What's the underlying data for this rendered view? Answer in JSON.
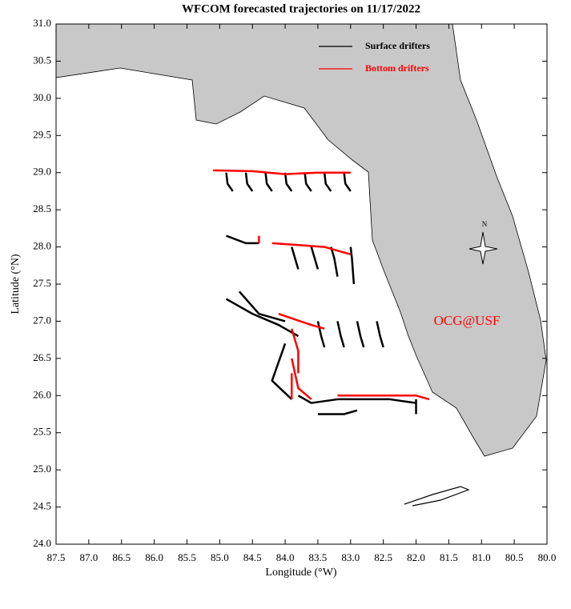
{
  "chart_data": {
    "type": "map",
    "title": "WFCOM forecasted trajectories on 11/17/2022",
    "x_label": "Longitude (°W)",
    "y_label": "Latitude (°N)",
    "annotations": [
      "OCG@USF",
      "N"
    ],
    "legend": "upper right",
    "xlim": [
      87.5,
      80.0
    ],
    "ylim": [
      24.0,
      31.0
    ],
    "xticks": [
      87.5,
      {
        "value": 87,
        "label": "87.0"
      },
      86.5,
      {
        "value": 86,
        "label": "86.0"
      },
      85.5,
      {
        "value": 85,
        "label": "85.0"
      },
      84.5,
      {
        "value": 84,
        "label": "84.0"
      },
      83.5,
      {
        "value": 83,
        "label": "83.0"
      },
      82.5,
      {
        "value": 82,
        "label": "82.0"
      },
      81.5,
      {
        "value": 81,
        "label": "81.0"
      },
      80.5,
      {
        "value": 80,
        "label": "80.0"
      }
    ],
    "yticks": [
      {
        "value": 24,
        "label": "24.0"
      },
      24.5,
      {
        "value": 25,
        "label": "25.0"
      },
      25.5,
      {
        "value": 26,
        "label": "26.0"
      },
      26.5,
      {
        "value": 27,
        "label": "27.0"
      },
      27.5,
      {
        "value": 28,
        "label": "28.0"
      },
      28.5,
      {
        "value": 29,
        "label": "29.0"
      },
      29.5,
      {
        "value": 30,
        "label": "30.0"
      },
      30.5,
      {
        "value": 31,
        "label": "31.0"
      }
    ],
    "series": [
      {
        "name": "Surface drifters",
        "color": "#000000",
        "tracks": [
          {
            "x": [
              84.9,
              84.88,
              84.8
            ],
            "y": [
              29.0,
              28.85,
              28.75
            ]
          },
          {
            "x": [
              84.6,
              84.58,
              84.5
            ],
            "y": [
              29.0,
              28.85,
              28.75
            ]
          },
          {
            "x": [
              84.3,
              84.28,
              84.2
            ],
            "y": [
              29.0,
              28.85,
              28.75
            ]
          },
          {
            "x": [
              84.0,
              83.98,
              83.9
            ],
            "y": [
              29.0,
              28.85,
              28.75
            ]
          },
          {
            "x": [
              83.7,
              83.68,
              83.6
            ],
            "y": [
              29.0,
              28.85,
              28.75
            ]
          },
          {
            "x": [
              83.4,
              83.38,
              83.3
            ],
            "y": [
              29.0,
              28.85,
              28.75
            ]
          },
          {
            "x": [
              83.1,
              83.08,
              83.0
            ],
            "y": [
              29.0,
              28.85,
              28.75
            ]
          },
          {
            "x": [
              84.9,
              84.6,
              84.4
            ],
            "y": [
              28.15,
              28.05,
              28.05
            ]
          },
          {
            "x": [
              83.9,
              83.85,
              83.8
            ],
            "y": [
              28.0,
              27.85,
              27.7
            ]
          },
          {
            "x": [
              83.6,
              83.55,
              83.5
            ],
            "y": [
              28.0,
              27.85,
              27.7
            ]
          },
          {
            "x": [
              83.3,
              83.25,
              83.2
            ],
            "y": [
              28.0,
              27.85,
              27.6
            ]
          },
          {
            "x": [
              83.0,
              82.98,
              82.95
            ],
            "y": [
              28.0,
              27.85,
              27.5
            ]
          },
          {
            "x": [
              84.9,
              84.5,
              84.1,
              83.8
            ],
            "y": [
              27.3,
              27.1,
              26.95,
              26.8
            ]
          },
          {
            "x": [
              84.7,
              84.4,
              84.0
            ],
            "y": [
              27.4,
              27.1,
              27.0
            ]
          },
          {
            "x": [
              83.5,
              83.45,
              83.4
            ],
            "y": [
              27.0,
              26.8,
              26.65
            ]
          },
          {
            "x": [
              83.2,
              83.15,
              83.1
            ],
            "y": [
              27.0,
              26.8,
              26.65
            ]
          },
          {
            "x": [
              82.9,
              82.85,
              82.8
            ],
            "y": [
              27.0,
              26.8,
              26.65
            ]
          },
          {
            "x": [
              82.6,
              82.55,
              82.5
            ],
            "y": [
              27.0,
              26.8,
              26.65
            ]
          },
          {
            "x": [
              83.8,
              83.6,
              83.2,
              82.8,
              82.4,
              82.0
            ],
            "y": [
              26.0,
              25.9,
              25.95,
              25.95,
              25.95,
              25.9
            ]
          },
          {
            "x": [
              83.5,
              83.1,
              82.9
            ],
            "y": [
              25.75,
              25.75,
              25.8
            ]
          },
          {
            "x": [
              82.0,
              82.0
            ],
            "y": [
              25.95,
              25.75
            ]
          },
          {
            "x": [
              84.0,
              84.2,
              83.9
            ],
            "y": [
              26.7,
              26.2,
              25.95
            ]
          }
        ]
      },
      {
        "name": "Bottom drifters",
        "color": "#ff0000",
        "tracks": [
          {
            "x": [
              85.1,
              84.5,
              84.0,
              83.5,
              83.0
            ],
            "y": [
              29.03,
              29.02,
              28.98,
              29.0,
              29.0
            ]
          },
          {
            "x": [
              84.4,
              84.4
            ],
            "y": [
              28.15,
              28.05
            ]
          },
          {
            "x": [
              84.2,
              83.4,
              83.0
            ],
            "y": [
              28.05,
              28.0,
              27.9
            ]
          },
          {
            "x": [
              84.1,
              83.6,
              83.4
            ],
            "y": [
              27.1,
              26.95,
              26.9
            ]
          },
          {
            "x": [
              83.9,
              83.8,
              83.8
            ],
            "y": [
              26.9,
              26.6,
              26.3
            ]
          },
          {
            "x": [
              83.9,
              83.8,
              83.6
            ],
            "y": [
              26.5,
              26.1,
              25.95
            ]
          },
          {
            "x": [
              83.2,
              82.6,
              82.0,
              81.8
            ],
            "y": [
              26.0,
              26.0,
              26.0,
              25.95
            ]
          },
          {
            "x": [
              83.9,
              83.9
            ],
            "y": [
              26.3,
              25.95
            ]
          }
        ]
      }
    ]
  }
}
